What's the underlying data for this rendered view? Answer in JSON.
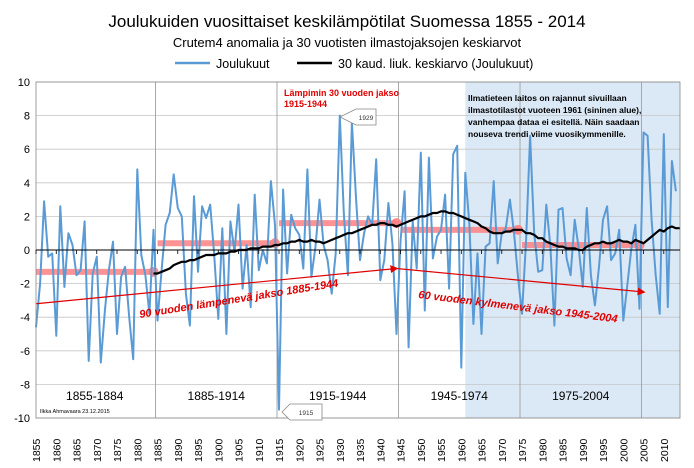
{
  "chart_data": {
    "type": "line",
    "title": "Joulukuiden vuosittaiset keskilämpötilat Suomessa 1855 - 2014",
    "subtitle": "Crutem4 anomalia ja 30 vuotisten ilmastojaksojen keskiarvot",
    "xlim": [
      1855,
      2014
    ],
    "ylim": [
      -10,
      10
    ],
    "y_ticks": [
      -10,
      -8,
      -6,
      -4,
      -2,
      0,
      2,
      4,
      6,
      8,
      10
    ],
    "x_ticks": [
      1855,
      1860,
      1865,
      1870,
      1875,
      1880,
      1885,
      1890,
      1895,
      1900,
      1905,
      1910,
      1915,
      1920,
      1925,
      1930,
      1935,
      1940,
      1945,
      1950,
      1955,
      1960,
      1965,
      1970,
      1975,
      1980,
      1985,
      1990,
      1995,
      2000,
      2005,
      2010
    ],
    "grid": true,
    "legend_position": "top",
    "colors": {
      "series": "#5b9bd5",
      "moving_avg": "#000000",
      "period_bars": "#ff8080",
      "annotation": "#e00000",
      "shade": "#dbe9f6",
      "grid": "#c6c6c6",
      "vline": "#a0a0a0"
    },
    "series": [
      {
        "name": "Joulukuut",
        "start_year": 1855,
        "values": [
          -4.6,
          -2.0,
          2.9,
          -0.4,
          -0.2,
          -5.1,
          2.6,
          -2.2,
          1.0,
          0.3,
          -1.5,
          -1.2,
          1.7,
          -6.6,
          -1.4,
          -0.4,
          -6.7,
          -3.6,
          -1.2,
          0.5,
          -5.0,
          -1.6,
          -1.0,
          -4.0,
          -6.5,
          4.8,
          -0.3,
          -1.5,
          -3.8,
          1.2,
          -4.2,
          -1.2,
          1.5,
          2.2,
          4.5,
          2.5,
          2.0,
          -2.6,
          -4.5,
          3.2,
          -1.3,
          2.6,
          1.9,
          2.7,
          -0.3,
          -4.1,
          1.3,
          -5.0,
          1.7,
          -0.1,
          2.7,
          -2.3,
          0.3,
          -3.4,
          3.3,
          -1.2,
          0.0,
          -0.8,
          4.1,
          1.5,
          -9.5,
          3.6,
          -1.4,
          2.1,
          1.3,
          0.9,
          -1.1,
          4.8,
          -1.6,
          0.2,
          3.0,
          0.3,
          -0.6,
          -2.6,
          -0.2,
          8.0,
          2.2,
          -1.5,
          7.6,
          3.1,
          -0.6,
          1.0,
          2.0,
          1.5,
          5.4,
          -1.8,
          -0.6,
          2.8,
          0.4,
          -5.0,
          0.5,
          3.5,
          -5.8,
          1.7,
          -1.1,
          5.8,
          -3.6,
          5.5,
          -0.5,
          0.8,
          1.2,
          3.3,
          -2.3,
          5.7,
          6.2,
          -7.0,
          4.6,
          1.5,
          -4.4,
          -0.2,
          -5.0,
          0.2,
          0.4,
          4.1,
          -0.8,
          1.0,
          1.3,
          3.0,
          1.1,
          -1.6,
          -3.8,
          0.6,
          6.8,
          1.0,
          -1.3,
          -1.2,
          2.7,
          0.2,
          -4.5,
          2.4,
          2.5,
          -0.5,
          -1.5,
          1.8,
          0.1,
          -2.2,
          2.5,
          -1.5,
          -3.3,
          -1.0,
          1.8,
          2.6,
          -0.6,
          -0.2,
          1.2,
          -4.2,
          -2.1,
          0.1,
          1.5,
          -3.5,
          7.0,
          6.8,
          1.8,
          -1.5,
          -3.8,
          6.9,
          -3.4,
          5.3,
          3.5
        ]
      },
      {
        "name": "30 kaud. liuk. keskiarvo (Joulukuut)",
        "start_year": 1884,
        "values": [
          -1.4,
          -1.4,
          -1.3,
          -1.2,
          -1.1,
          -0.9,
          -0.8,
          -0.7,
          -0.7,
          -0.6,
          -0.6,
          -0.5,
          -0.4,
          -0.3,
          -0.3,
          -0.3,
          -0.2,
          -0.2,
          -0.2,
          -0.1,
          -0.1,
          0.0,
          0.0,
          0.0,
          0.1,
          0.1,
          0.1,
          0.2,
          0.2,
          0.2,
          0.3,
          0.3,
          0.4,
          0.4,
          0.5,
          0.5,
          0.6,
          0.5,
          0.5,
          0.6,
          0.5,
          0.5,
          0.4,
          0.5,
          0.6,
          0.7,
          0.8,
          0.9,
          1.0,
          1.0,
          1.1,
          1.2,
          1.3,
          1.4,
          1.5,
          1.5,
          1.6,
          1.6,
          1.5,
          1.5,
          1.4,
          1.5,
          1.6,
          1.7,
          1.8,
          1.9,
          2.0,
          2.0,
          2.1,
          2.2,
          2.2,
          2.3,
          2.3,
          2.2,
          2.2,
          2.1,
          2.0,
          1.9,
          1.8,
          1.7,
          1.6,
          1.4,
          1.3,
          1.1,
          1.0,
          1.0,
          1.0,
          1.1,
          1.1,
          1.2,
          1.2,
          1.2,
          1.0,
          1.0,
          0.9,
          0.7,
          0.7,
          0.5,
          0.4,
          0.3,
          0.2,
          0.2,
          0.1,
          0.1,
          0.1,
          0.0,
          0.0,
          0.2,
          0.3,
          0.4,
          0.4,
          0.5,
          0.4,
          0.4,
          0.5,
          0.6,
          0.5,
          0.5,
          0.4,
          0.6,
          0.5,
          0.4,
          0.6,
          0.8,
          1.0,
          1.2,
          1.1,
          1.3,
          1.4,
          1.3,
          1.3
        ]
      }
    ],
    "period_means": [
      {
        "label": "1855-1884",
        "start": 1855,
        "end": 1884,
        "value": -1.3
      },
      {
        "label": "1885-1914",
        "start": 1885,
        "end": 1914,
        "value": 0.4
      },
      {
        "label": "1915-1944",
        "start": 1915,
        "end": 1944,
        "value": 1.6
      },
      {
        "label": "1945-1974",
        "start": 1945,
        "end": 1974,
        "value": 1.2
      },
      {
        "label": "1975-2004",
        "start": 1975,
        "end": 2004,
        "value": 0.3
      }
    ],
    "shaded_period": {
      "start": 1961,
      "end": 2014
    },
    "trend_arrows": [
      {
        "label": "90 vuoden lämpenevä jakso 1885-1944",
        "from": [
          1855,
          -3.2
        ],
        "to": [
          1944,
          -1.1
        ]
      },
      {
        "label": "60 vuoden kylmenevä jakso 1945-2004",
        "from": [
          1944,
          -1.1
        ],
        "to": [
          2005,
          -2.5
        ]
      }
    ],
    "annotations": {
      "warmest_line1": "Lämpimin 30 vuoden jakso",
      "warmest_line2": "1915-1944",
      "callout_1929": "1929",
      "callout_1915": "1915",
      "fmi_note": [
        "Ilmatieteen laitos on rajannut sivuillaan",
        "ilmastotilastot vuoteen 1961 (sininen alue),",
        "vanhempaa dataa ei esitellä. Näin saadaan",
        "nouseva trendi viime vuosikymmenille."
      ],
      "author": "Ilkka Ahmavaara 23.12.2015"
    }
  }
}
